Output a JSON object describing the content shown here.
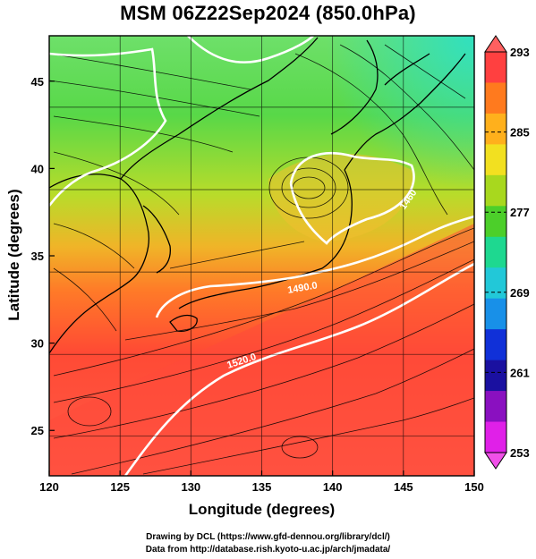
{
  "title": "MSM 06Z22Sep2024 (850.0hPa)",
  "map": {
    "xlabel": "Longitude (degrees)",
    "ylabel": "Latitude  (degrees)",
    "xticks": [
      "120",
      "125",
      "130",
      "135",
      "140",
      "145",
      "150"
    ],
    "yticks": [
      "25",
      "30",
      "35",
      "40",
      "45"
    ],
    "lon_range": [
      120,
      150
    ],
    "lat_range": [
      22.4,
      47.6
    ],
    "contour_labels": [
      "1520.0",
      "1490.0",
      "1460"
    ]
  },
  "colorbar": {
    "ticks": [
      "293",
      "285",
      "277",
      "269",
      "261",
      "253"
    ],
    "colors": [
      "#ff4040",
      "#ff7a1e",
      "#ffb01c",
      "#f2e020",
      "#a8d81e",
      "#4ccf2a",
      "#1ed890",
      "#22c8d8",
      "#1890e8",
      "#1030d8",
      "#1a10a0",
      "#8a10c0",
      "#e020e8"
    ]
  },
  "credits": {
    "line1": "Drawing by DCL (https://www.gfd-dennou.org/library/dcl/)",
    "line2": "Data from http://database.rish.kyoto-u.ac.jp/arch/jmadata/"
  }
}
